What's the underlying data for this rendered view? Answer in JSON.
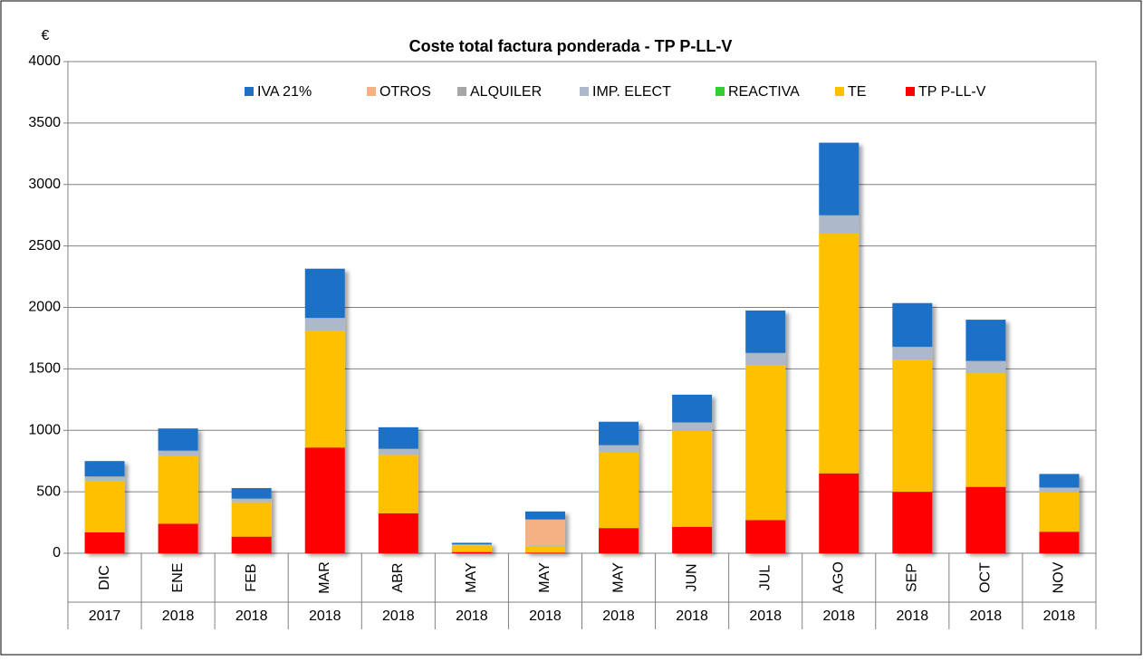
{
  "chart_data": {
    "type": "stacked_bar",
    "title": "Coste total factura ponderada - TP P-LL-V",
    "y_label": "€",
    "categories": [
      "DIC",
      "ENE",
      "FEB",
      "MAR",
      "ABR",
      "MAY",
      "MAY",
      "MAY",
      "JUN",
      "JUL",
      "AGO",
      "SEP",
      "OCT",
      "NOV"
    ],
    "years": [
      "2017",
      "2018",
      "2018",
      "2018",
      "2018",
      "2018",
      "2018",
      "2018",
      "2018",
      "2018",
      "2018",
      "2018",
      "2018",
      "2018"
    ],
    "series": [
      {
        "name": "IVA 21%",
        "color": "#1f6fc5",
        "values": [
          125,
          180,
          85,
          400,
          175,
          13,
          65,
          190,
          225,
          345,
          590,
          355,
          335,
          110
        ]
      },
      {
        "name": "OTROS",
        "color": "#f4b183",
        "values": [
          0,
          0,
          0,
          0,
          0,
          0,
          210,
          0,
          0,
          0,
          0,
          0,
          0,
          0
        ]
      },
      {
        "name": "ALQUILER",
        "color": "#a6a6a6",
        "values": [
          5,
          5,
          5,
          5,
          5,
          2,
          2,
          5,
          5,
          5,
          5,
          5,
          5,
          5
        ]
      },
      {
        "name": "IMP. ELECT",
        "color": "#adb9ca",
        "values": [
          30,
          40,
          25,
          100,
          45,
          5,
          3,
          55,
          65,
          95,
          145,
          100,
          95,
          35
        ]
      },
      {
        "name": "REACTIVA",
        "color": "#33cc33",
        "values": [
          0,
          0,
          0,
          0,
          0,
          0,
          0,
          0,
          0,
          0,
          0,
          0,
          0,
          0
        ]
      },
      {
        "name": "TE",
        "color": "#ffc000",
        "values": [
          420,
          550,
          280,
          950,
          475,
          55,
          55,
          615,
          780,
          1260,
          1950,
          1075,
          925,
          320
        ]
      },
      {
        "name": "TP P-LL-V",
        "color": "#ff0000",
        "values": [
          170,
          240,
          135,
          860,
          325,
          10,
          5,
          205,
          215,
          270,
          650,
          500,
          540,
          175
        ]
      }
    ],
    "ylim": [
      0,
      4000
    ],
    "yticks": [
      0,
      500,
      1000,
      1500,
      2000,
      2500,
      3000,
      3500,
      4000
    ],
    "grid": true
  }
}
